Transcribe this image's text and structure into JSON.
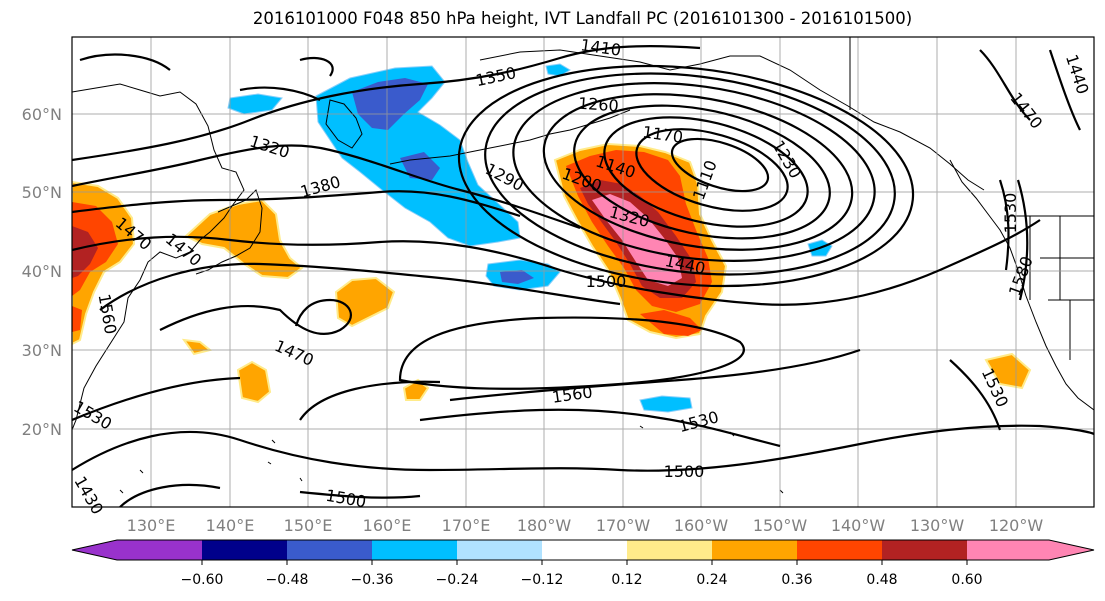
{
  "title": "2016101000 F048 850 hPa height, IVT Landfall PC (2016101300 - 2016101500)",
  "longitude_labels": [
    "130°E",
    "140°E",
    "150°E",
    "160°E",
    "170°E",
    "180°W",
    "170°W",
    "160°W",
    "150°W",
    "140°W",
    "130°W",
    "120°W"
  ],
  "latitude_labels": [
    "60°N",
    "50°N",
    "40°N",
    "30°N",
    "20°N"
  ],
  "colorbar": {
    "colors": [
      "#9932CC",
      "#00008B",
      "#3A5BCC",
      "#00BFFF",
      "#B0E2FF",
      "#FFFFFF",
      "#FFEB8A",
      "#FFA500",
      "#FF4500",
      "#B22222",
      "#FF85B3"
    ],
    "tick_labels": [
      "−0.60",
      "−0.48",
      "−0.36",
      "−0.24",
      "−0.12",
      "0.12",
      "0.24",
      "0.36",
      "0.48",
      "0.60"
    ]
  },
  "contour_labels": [
    "1410",
    "1350",
    "1260",
    "1170",
    "1140",
    "1110",
    "1230",
    "1320",
    "1200",
    "1290",
    "1380",
    "1470",
    "1320",
    "1440",
    "1500",
    "1560",
    "1470",
    "1560",
    "1530",
    "1500",
    "1500",
    "1470",
    "1530",
    "1580",
    "1530",
    "1440",
    "1470",
    "1530",
    "1430"
  ]
}
